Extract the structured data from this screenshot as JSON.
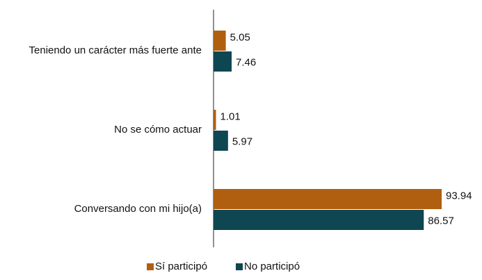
{
  "chart_data": {
    "type": "hbar",
    "categories": [
      "Teniendo un carácter más fuerte ante",
      "No se cómo actuar",
      "Conversando con mi hijo(a)"
    ],
    "series": [
      {
        "name": "Sí participó",
        "color": "#b05f10",
        "values": [
          5.05,
          1.01,
          93.94
        ]
      },
      {
        "name": "No participó",
        "color": "#0e4652",
        "values": [
          7.46,
          5.97,
          86.57
        ]
      }
    ],
    "legend": "bottom"
  }
}
